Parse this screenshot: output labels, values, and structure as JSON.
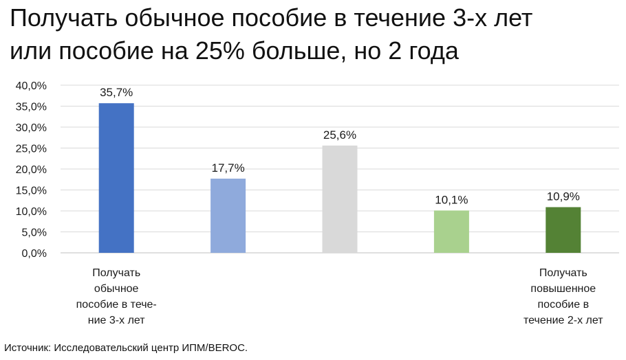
{
  "title": {
    "line1": "Получать обычное пособие в течение 3-х лет",
    "line2": "или пособие на 25% больше, но 2 года"
  },
  "source": "Источник: Исследовательский центр ИПМ/BEROC.",
  "chart_data": {
    "type": "bar",
    "title": "Получать обычное пособие в течение 3-х лет или пособие на 25% больше, но 2 года",
    "ylim": [
      0,
      40
    ],
    "yticks": [
      "0,0%",
      "5,0%",
      "10,0%",
      "15,0%",
      "20,0%",
      "25,0%",
      "30,0%",
      "35,0%",
      "40,0%"
    ],
    "grid": true,
    "categories": [
      [
        "Получать",
        "обычное",
        "пособие в тече-",
        "ние 3-х лет"
      ],
      [],
      [],
      [],
      [
        "Получать",
        "повышенное",
        "пособие в",
        "течение 2-х лет"
      ]
    ],
    "values": [
      35.7,
      17.7,
      25.6,
      10.1,
      10.9
    ],
    "labels": [
      "35,7%",
      "17,7%",
      "25,6%",
      "10,1%",
      "10,9%"
    ],
    "colors": [
      "#4472C4",
      "#8FAADC",
      "#D9D9D9",
      "#A9D18E",
      "#548235"
    ]
  }
}
